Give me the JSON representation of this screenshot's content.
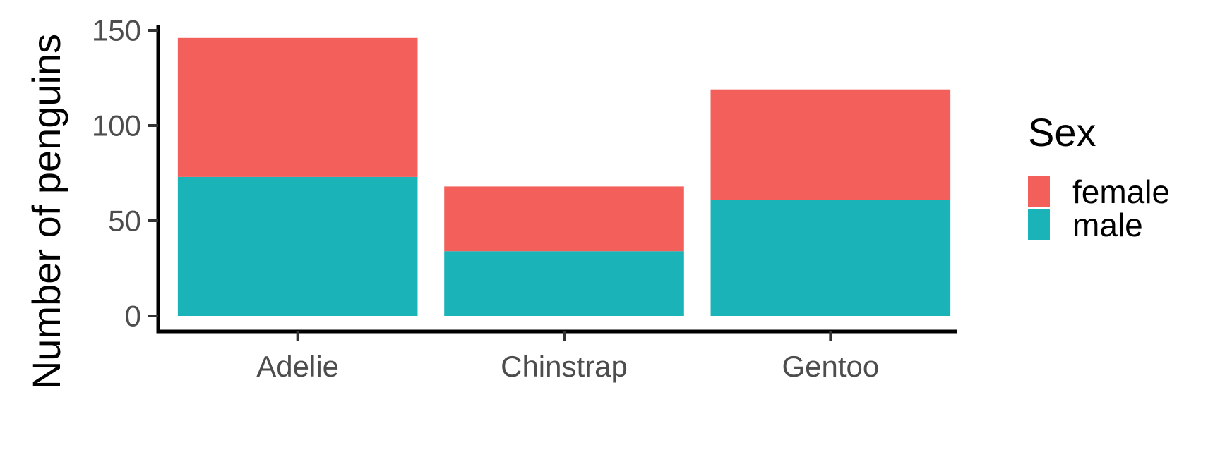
{
  "chart_data": {
    "type": "bar",
    "stacked": true,
    "title": "",
    "xlabel": "",
    "ylabel": "Number of penguins",
    "categories": [
      "Adelie",
      "Chinstrap",
      "Gentoo"
    ],
    "series": [
      {
        "name": "male",
        "values": [
          73,
          34,
          61
        ],
        "color": "#1AB3B8"
      },
      {
        "name": "female",
        "values": [
          73,
          34,
          58
        ],
        "color": "#F3605C"
      }
    ],
    "ylim": [
      0,
      150
    ],
    "yticks": [
      0,
      50,
      100,
      150
    ],
    "grid": false,
    "legend": {
      "title": "Sex",
      "position": "right",
      "entries": [
        {
          "label": "female",
          "color": "#F3605C"
        },
        {
          "label": "male",
          "color": "#1AB3B8"
        }
      ]
    }
  }
}
